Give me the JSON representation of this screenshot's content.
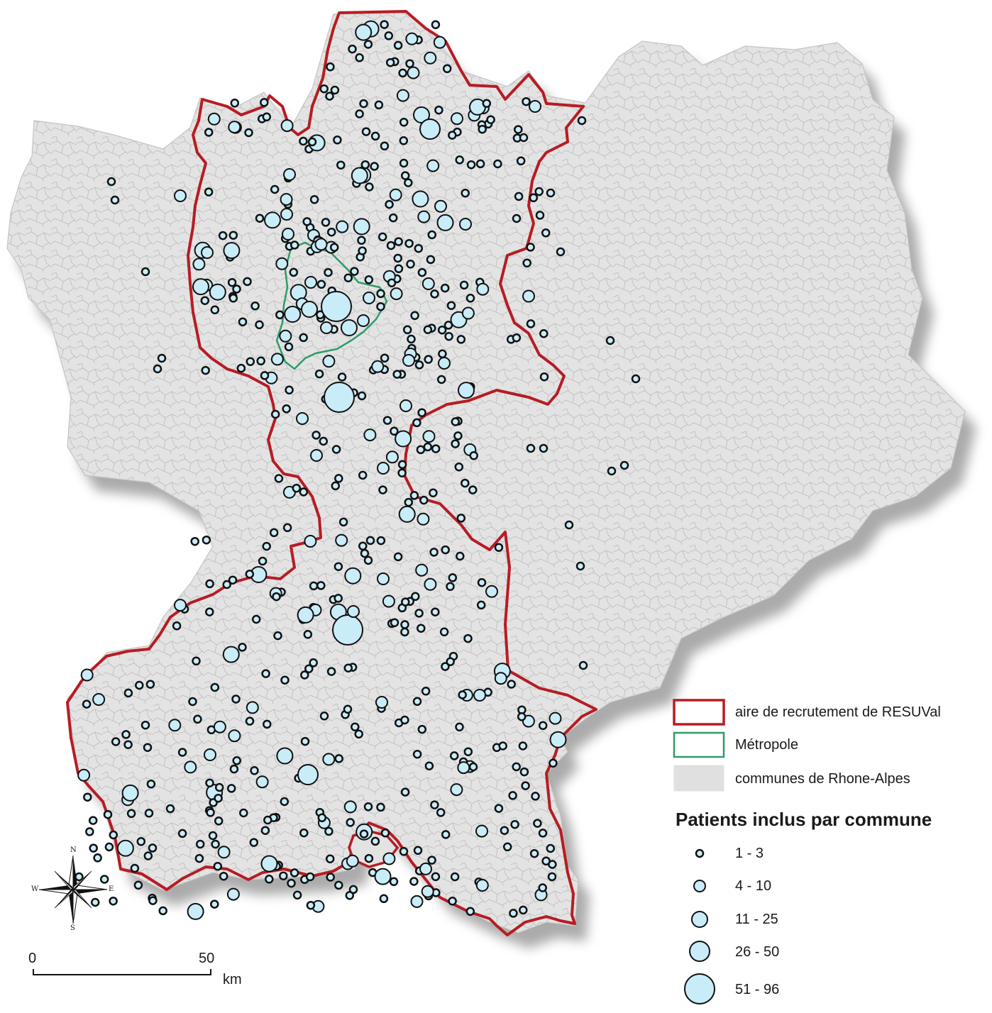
{
  "legend": {
    "areas": [
      {
        "label": "aire de recrutement de RESUVal",
        "stroke": "#b71c24",
        "fill": "#ffffff"
      },
      {
        "label": "Métropole",
        "stroke": "#2e9b6b",
        "fill": "#ffffff"
      },
      {
        "label": "communes de Rhone-Alpes",
        "stroke": "#e0e0e0",
        "fill": "#e0e0e0"
      }
    ],
    "title": "Patients inclus par commune",
    "classes": [
      "1 - 3",
      "4 - 10",
      "11 - 25",
      "26 - 50",
      "51 - 96"
    ]
  },
  "compass": {
    "n": "N",
    "s": "S",
    "e": "E",
    "w": "W"
  },
  "scale": {
    "start": "0",
    "end": "50",
    "unit": "km"
  },
  "colors": {
    "land": "#e3e3e3",
    "commune_border": "#b9b9b9",
    "shadow": "#9a9a9a",
    "recruitment": "#b71c24",
    "metropole": "#2e9b6b",
    "circle_fill": "#c9ecf9",
    "circle_stroke": "#111111"
  }
}
